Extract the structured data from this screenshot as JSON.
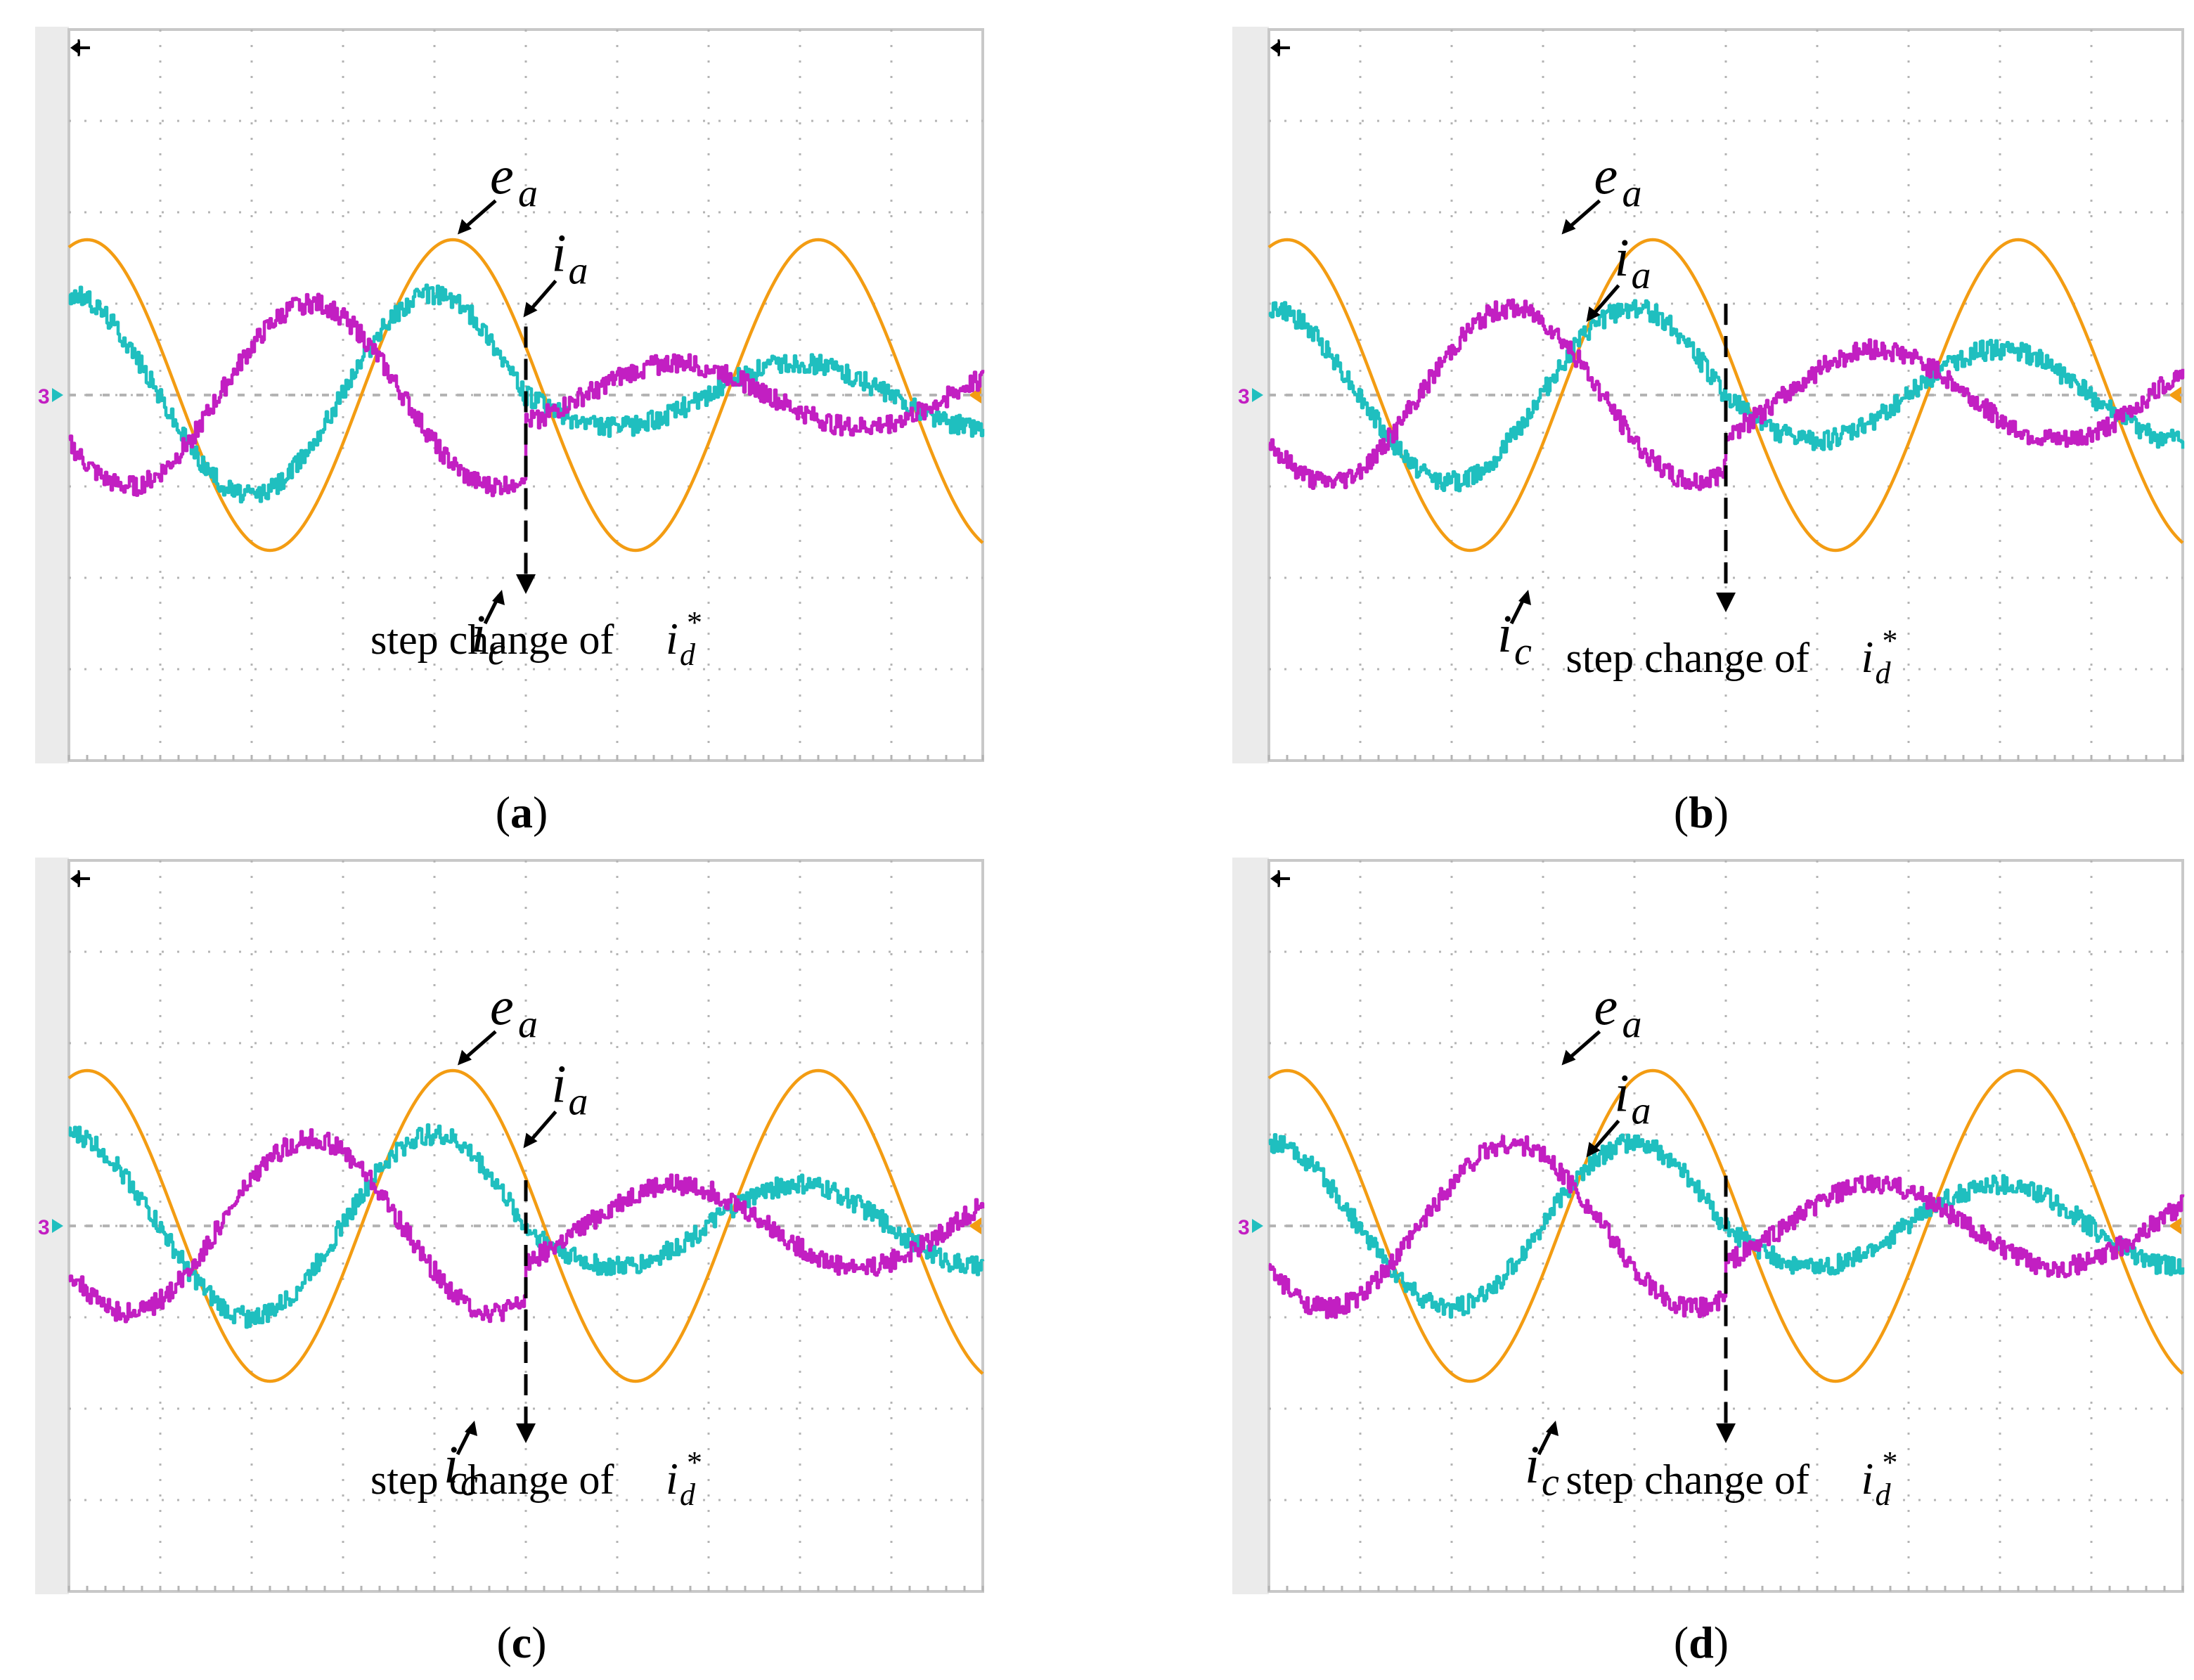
{
  "figure": {
    "panels": [
      "a",
      "b",
      "c",
      "d"
    ]
  },
  "colors": {
    "e_a": "#F39C12",
    "i_a": "#1FBFBF",
    "i_c": "#C21FC2",
    "annotation": "#000000",
    "grid": "#B4B4B4"
  },
  "labels": {
    "e_a_main": "e",
    "e_a_sub": "a",
    "i_a_main": "i",
    "i_a_sub": "a",
    "i_c_main": "i",
    "i_c_sub": "c",
    "step_text": "step change of ",
    "step_var_main": "i",
    "step_var_sub": "d",
    "step_var_sup": "*"
  },
  "chart_data": [
    {
      "panel": "a",
      "type": "line",
      "caption": "(a)",
      "xlim": [
        0,
        10
      ],
      "ylim": [
        -4,
        4
      ],
      "divisions": {
        "x": 10,
        "y": 8
      },
      "step_time": 5.0,
      "series": [
        {
          "name": "e_a",
          "amplitude": [
            1.7,
            1.7
          ],
          "period": 4.0,
          "phase_deg": 0
        },
        {
          "name": "i_a",
          "amplitude": [
            1.1,
            0.35
          ],
          "period": 4.0,
          "phase_deg": -25,
          "offset": 0
        },
        {
          "name": "i_c",
          "amplitude": [
            1.0,
            0.35
          ],
          "period": 4.0,
          "phase_deg": 215,
          "offset": 0
        }
      ]
    },
    {
      "panel": "b",
      "type": "line",
      "caption": "(b)",
      "xlim": [
        0,
        10
      ],
      "ylim": [
        -4,
        4
      ],
      "divisions": {
        "x": 10,
        "y": 8
      },
      "step_time": 5.0,
      "series": [
        {
          "name": "e_a",
          "amplitude": [
            1.7,
            1.7
          ],
          "period": 4.0,
          "phase_deg": 0
        },
        {
          "name": "i_a",
          "amplitude": [
            0.95,
            0.5
          ],
          "period": 4.0,
          "phase_deg": -25,
          "offset": 0
        },
        {
          "name": "i_c",
          "amplitude": [
            0.95,
            0.5
          ],
          "period": 4.0,
          "phase_deg": 215,
          "offset": 0
        }
      ]
    },
    {
      "panel": "c",
      "type": "line",
      "caption": "(c)",
      "xlim": [
        0,
        10
      ],
      "ylim": [
        -4,
        4
      ],
      "divisions": {
        "x": 10,
        "y": 8
      },
      "step_time": 5.0,
      "series": [
        {
          "name": "e_a",
          "amplitude": [
            1.7,
            1.7
          ],
          "period": 4.0,
          "phase_deg": 0
        },
        {
          "name": "i_a",
          "amplitude": [
            1.0,
            0.45
          ],
          "period": 4.0,
          "phase_deg": -25,
          "offset": 0
        },
        {
          "name": "i_c",
          "amplitude": [
            0.95,
            0.45
          ],
          "period": 4.0,
          "phase_deg": 215,
          "offset": 0
        }
      ]
    },
    {
      "panel": "d",
      "type": "line",
      "caption": "(d)",
      "xlim": [
        0,
        10
      ],
      "ylim": [
        -4,
        4
      ],
      "divisions": {
        "x": 10,
        "y": 8
      },
      "step_time": 5.0,
      "series": [
        {
          "name": "e_a",
          "amplitude": [
            1.7,
            1.7
          ],
          "period": 4.0,
          "phase_deg": 0
        },
        {
          "name": "i_a",
          "amplitude": [
            0.9,
            0.45
          ],
          "period": 4.0,
          "phase_deg": -25,
          "offset": 0
        },
        {
          "name": "i_c",
          "amplitude": [
            0.9,
            0.45
          ],
          "period": 4.0,
          "phase_deg": 215,
          "offset": 0
        }
      ]
    }
  ]
}
